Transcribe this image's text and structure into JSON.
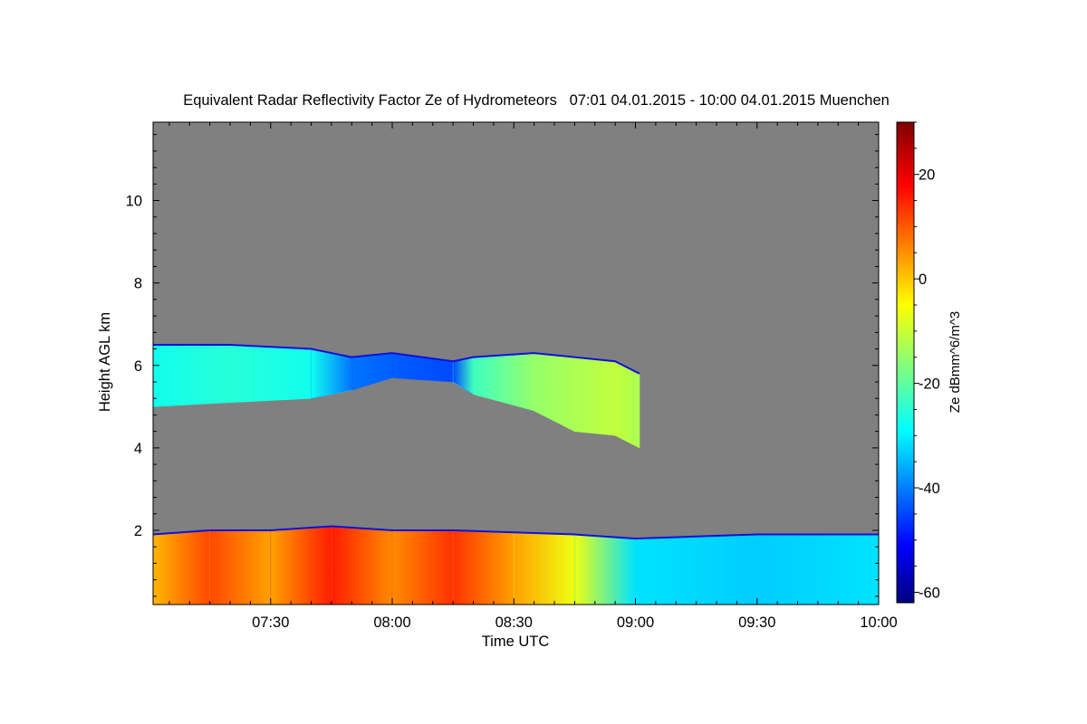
{
  "chart_data": {
    "type": "heatmap",
    "title": "Equivalent Radar Reflectivity Factor Ze of Hydrometeors   07:01 04.01.2015 - 10:00 04.01.2015 Muenchen",
    "xlabel": "Time UTC",
    "ylabel": "Height AGL km",
    "colorbar_label": "Ze dBmm^6/m^3",
    "x_range": [
      "07:01",
      "10:00"
    ],
    "x_ticks": [
      "07:30",
      "08:00",
      "08:30",
      "09:00",
      "09:30",
      "10:00"
    ],
    "y_range_km": [
      0.2,
      11.9
    ],
    "y_ticks": [
      "2",
      "4",
      "6",
      "8",
      "10"
    ],
    "colorbar_range": [
      -62,
      30
    ],
    "colorbar_ticks": [
      "20",
      "0",
      "-20",
      "-40",
      "-60"
    ],
    "colormap": "jet",
    "background_color": "#808080",
    "layers": [
      {
        "name": "upper cloud layer",
        "points": [
          {
            "time": "07:01",
            "base_km": 5.0,
            "top_km": 6.5,
            "dbz": -26
          },
          {
            "time": "07:20",
            "base_km": 5.1,
            "top_km": 6.5,
            "dbz": -24
          },
          {
            "time": "07:40",
            "base_km": 5.2,
            "top_km": 6.4,
            "dbz": -26
          },
          {
            "time": "07:50",
            "base_km": 5.4,
            "top_km": 6.2,
            "dbz": -40
          },
          {
            "time": "08:00",
            "base_km": 5.7,
            "top_km": 6.3,
            "dbz": -42
          },
          {
            "time": "08:15",
            "base_km": 5.6,
            "top_km": 6.1,
            "dbz": -44
          },
          {
            "time": "08:20",
            "base_km": 5.3,
            "top_km": 6.2,
            "dbz": -22
          },
          {
            "time": "08:35",
            "base_km": 4.9,
            "top_km": 6.3,
            "dbz": -14
          },
          {
            "time": "08:45",
            "base_km": 4.4,
            "top_km": 6.2,
            "dbz": -12
          },
          {
            "time": "08:55",
            "base_km": 4.3,
            "top_km": 6.1,
            "dbz": -10
          },
          {
            "time": "09:01",
            "base_km": 4.0,
            "top_km": 5.8,
            "dbz": -12
          }
        ]
      },
      {
        "name": "low precipitation layer",
        "points": [
          {
            "time": "07:01",
            "base_km": 0.2,
            "top_km": 1.9,
            "dbz": 2
          },
          {
            "time": "07:15",
            "base_km": 0.2,
            "top_km": 2.0,
            "dbz": 12
          },
          {
            "time": "07:30",
            "base_km": 0.2,
            "top_km": 2.0,
            "dbz": 4
          },
          {
            "time": "07:45",
            "base_km": 0.2,
            "top_km": 2.1,
            "dbz": 16
          },
          {
            "time": "08:00",
            "base_km": 0.2,
            "top_km": 2.0,
            "dbz": 6
          },
          {
            "time": "08:15",
            "base_km": 0.2,
            "top_km": 2.0,
            "dbz": 14
          },
          {
            "time": "08:30",
            "base_km": 0.2,
            "top_km": 1.95,
            "dbz": 4
          },
          {
            "time": "08:45",
            "base_km": 0.2,
            "top_km": 1.9,
            "dbz": -6
          },
          {
            "time": "09:00",
            "base_km": 0.2,
            "top_km": 1.8,
            "dbz": -30
          },
          {
            "time": "09:30",
            "base_km": 0.2,
            "top_km": 1.9,
            "dbz": -32
          },
          {
            "time": "10:00",
            "base_km": 0.2,
            "top_km": 1.9,
            "dbz": -30
          }
        ]
      }
    ]
  }
}
